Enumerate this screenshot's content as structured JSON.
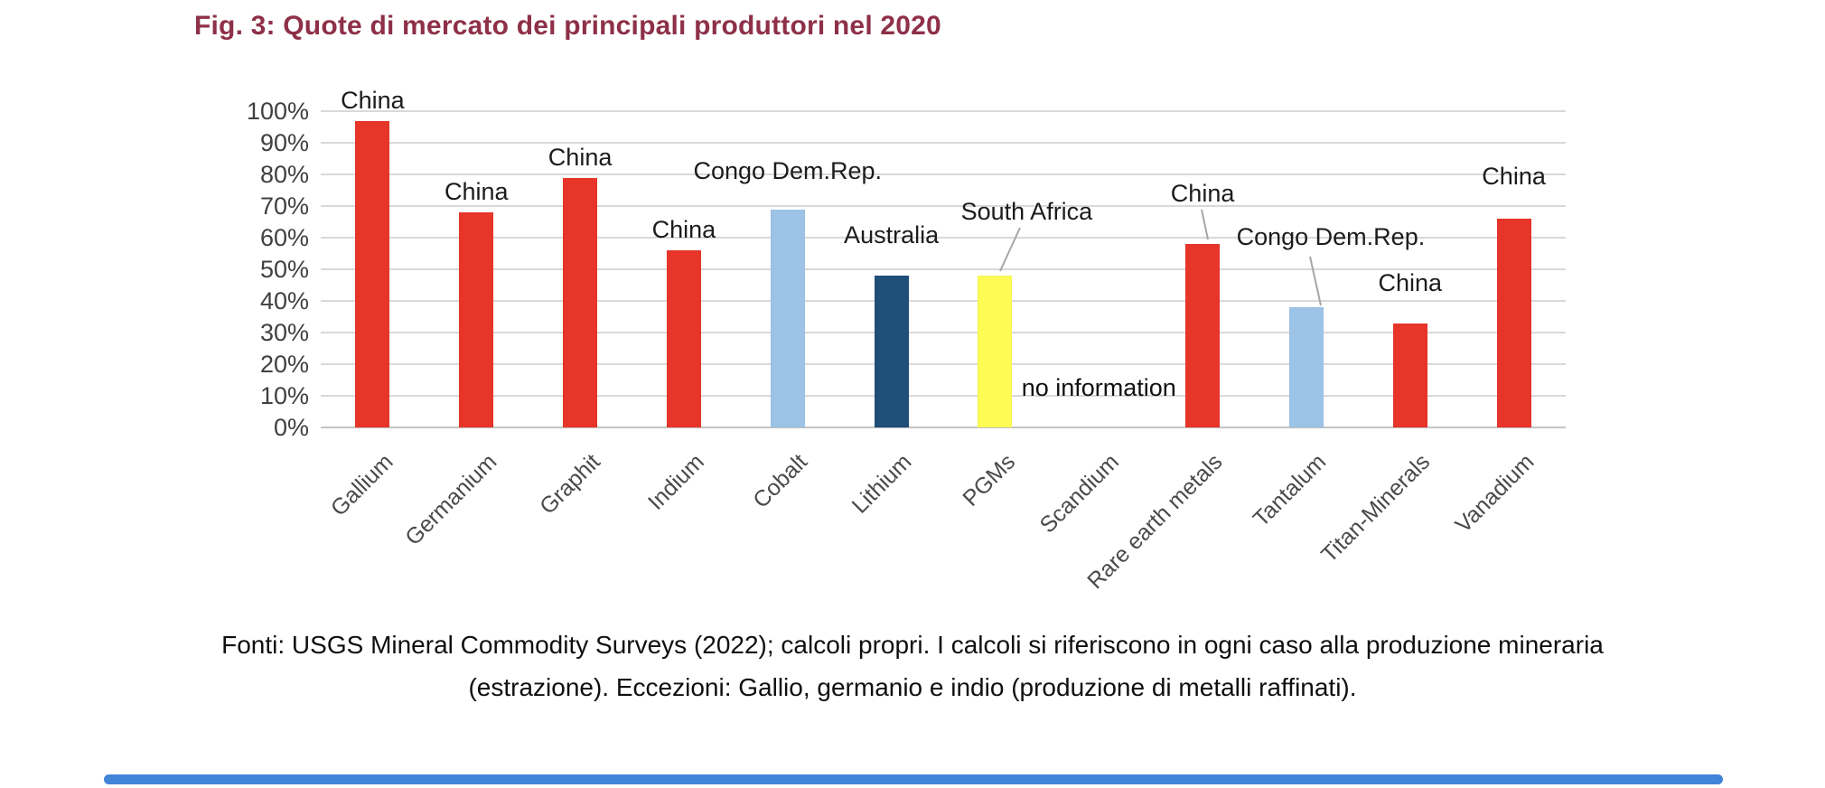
{
  "title": "Fig. 3: Quote di mercato dei principali produttori nel 2020",
  "footer": {
    "line1": "Fonti: USGS Mineral Commodity Surveys (2022); calcoli propri. I calcoli si riferiscono in ogni caso alla produzione mineraria",
    "line2": "(estrazione). Eccezioni: Gallio, germanio e indio (produzione di metalli raffinati)."
  },
  "colors": {
    "red": "#e8352a",
    "light_blue": "#9dc3e6",
    "dark_blue": "#1f4e79",
    "yellow": "#fdfb54",
    "title_text": "#8e3048",
    "gridline": "#d9d9d9",
    "axis_text": "#404040",
    "leader_line": "#a6a6a6",
    "scrollbar": "#4183d7"
  },
  "chart_data": {
    "type": "bar",
    "title": "Fig. 3: Quote di mercato dei principali produttori nel 2020",
    "xlabel": "",
    "ylabel": "",
    "ylim": [
      0,
      100
    ],
    "grid": true,
    "legend": false,
    "y_tick_labels": [
      "0%",
      "10%",
      "20%",
      "30%",
      "40%",
      "50%",
      "60%",
      "70%",
      "80%",
      "90%",
      "100%"
    ],
    "categories": [
      "Gallium",
      "Germanium",
      "Graphit",
      "Indium",
      "Cobalt",
      "Lithium",
      "PGMs",
      "Scandium",
      "Rare earth metals",
      "Tantalum",
      "Titan-Minerals",
      "Vanadium"
    ],
    "values": [
      97,
      68,
      79,
      56,
      69,
      48,
      48,
      null,
      58,
      38,
      33,
      66
    ],
    "bar_colors": [
      "red",
      "red",
      "red",
      "red",
      "light_blue",
      "dark_blue",
      "yellow",
      null,
      "red",
      "light_blue",
      "red",
      "red"
    ],
    "producer_labels": [
      "China",
      "China",
      "China",
      "China",
      "Congo Dem.Rep.",
      "Australia",
      "South Africa",
      null,
      "China",
      "Congo Dem.Rep.",
      "China",
      "China"
    ],
    "annotations": [
      {
        "text": "no information",
        "category": "Scandium"
      }
    ]
  }
}
